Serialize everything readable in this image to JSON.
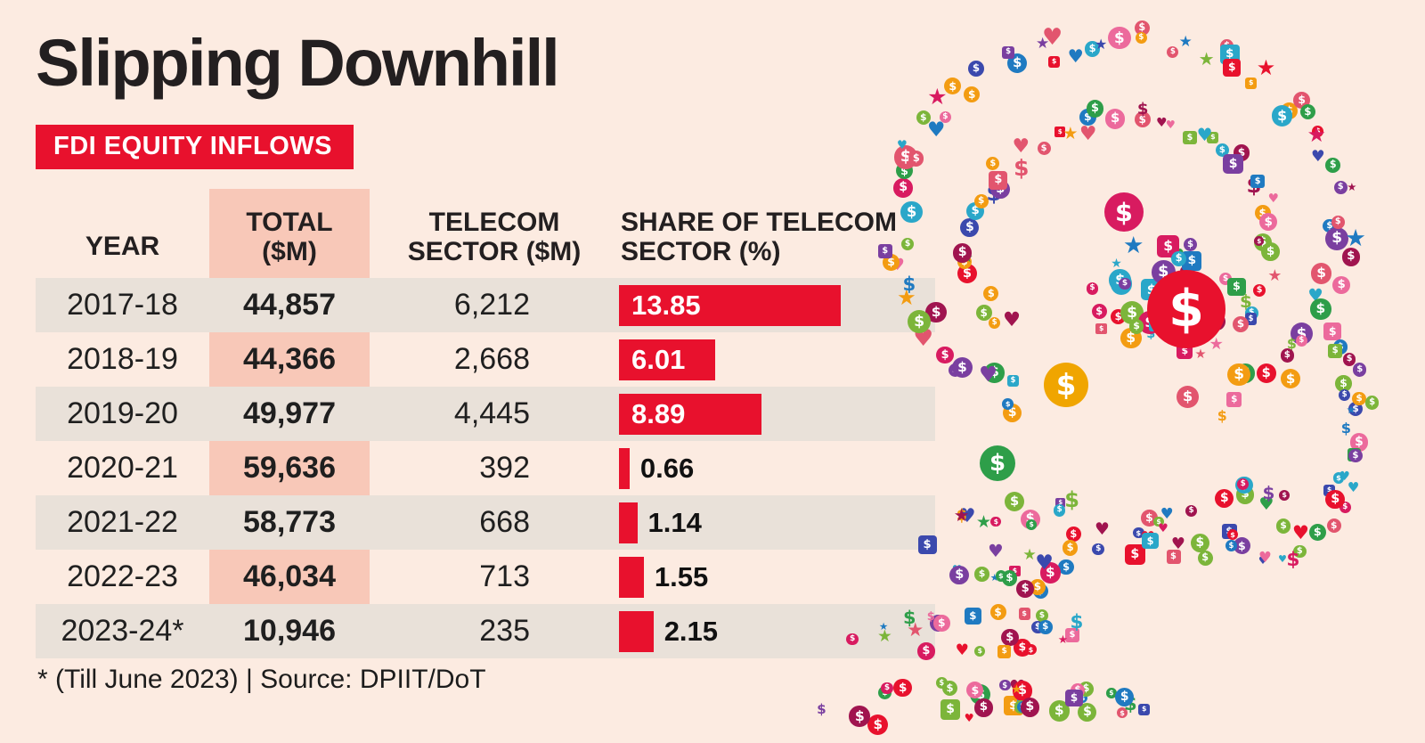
{
  "title": "Slipping Downhill",
  "badge": "FDI EQUITY INFLOWS",
  "footnote": "* (Till June 2023) | Source: DPIIT/DoT",
  "colors": {
    "accent_red": "#e8112d",
    "total_band_pink": "#f8c8b8",
    "row_stripe": "#e9e1d9",
    "background": "#fcebe1",
    "text_dark": "#231f20"
  },
  "table": {
    "headers": {
      "year": "YEAR",
      "total": "TOTAL\n($M)",
      "telecom": "TELECOM\nSECTOR ($M)",
      "share": "SHARE OF TELECOM\nSECTOR (%)"
    },
    "rows": [
      {
        "year": "2017-18",
        "total": "44,857",
        "telecom": "6,212",
        "share": 13.85
      },
      {
        "year": "2018-19",
        "total": "44,366",
        "telecom": "2,668",
        "share": 6.01
      },
      {
        "year": "2019-20",
        "total": "49,977",
        "telecom": "4,445",
        "share": 8.89
      },
      {
        "year": "2020-21",
        "total": "59,636",
        "telecom": "392",
        "share": 0.66
      },
      {
        "year": "2021-22",
        "total": "58,773",
        "telecom": "668",
        "share": 1.14
      },
      {
        "year": "2022-23",
        "total": "46,034",
        "telecom": "713",
        "share": 1.55
      },
      {
        "year": "2023-24*",
        "total": "10,946",
        "telecom": "235",
        "share": 2.15
      }
    ]
  },
  "chart_data": {
    "type": "bar",
    "orientation": "horizontal",
    "title": "Slipping Downhill",
    "subtitle": "FDI Equity Inflows",
    "categories": [
      "2017-18",
      "2018-19",
      "2019-20",
      "2020-21",
      "2021-22",
      "2022-23",
      "2023-24*"
    ],
    "series": [
      {
        "name": "Total ($M)",
        "values": [
          44857,
          44366,
          49977,
          59636,
          58773,
          46034,
          10946
        ]
      },
      {
        "name": "Telecom Sector ($M)",
        "values": [
          6212,
          2668,
          4445,
          392,
          668,
          713,
          235
        ]
      },
      {
        "name": "Share of Telecom Sector (%)",
        "values": [
          13.85,
          6.01,
          8.89,
          0.66,
          1.14,
          1.55,
          2.15
        ]
      }
    ],
    "bar_color": "#e8112d",
    "share_axis_max": 15,
    "note": "* Till June 2023; Source: DPIIT/DoT"
  }
}
